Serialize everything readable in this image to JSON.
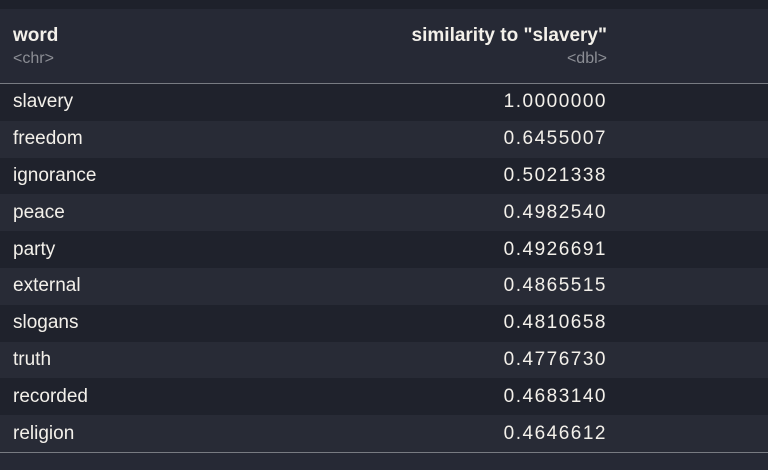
{
  "table": {
    "columns": [
      {
        "label": "word",
        "type": "<chr>"
      },
      {
        "label": "similarity to \"slavery\"",
        "type": "<dbl>"
      }
    ],
    "rows": [
      {
        "word": "slavery",
        "similarity": "1.0000000"
      },
      {
        "word": "freedom",
        "similarity": "0.6455007"
      },
      {
        "word": "ignorance",
        "similarity": "0.5021338"
      },
      {
        "word": "peace",
        "similarity": "0.4982540"
      },
      {
        "word": "party",
        "similarity": "0.4926691"
      },
      {
        "word": "external",
        "similarity": "0.4865515"
      },
      {
        "word": "slogans",
        "similarity": "0.4810658"
      },
      {
        "word": "truth",
        "similarity": "0.4776730"
      },
      {
        "word": "recorded",
        "similarity": "0.4683140"
      },
      {
        "word": "religion",
        "similarity": "0.4646612"
      }
    ]
  },
  "colors": {
    "row_dark": "#1f222c",
    "row_light": "#282b36",
    "header_bg": "#262935",
    "top_strip": "#1e212b",
    "divider": "#787b82",
    "text_primary": "#f3f0ea",
    "text_type": "#8c8e95"
  }
}
